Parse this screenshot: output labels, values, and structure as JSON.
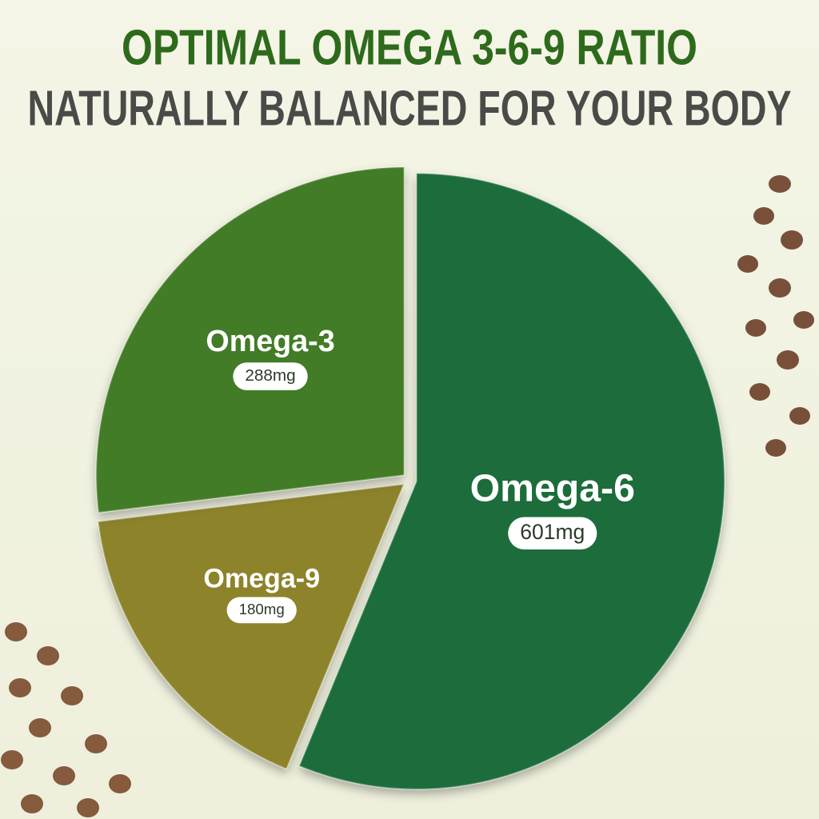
{
  "chart_data": {
    "type": "pie",
    "title": "OPTIMAL OMEGA 3-6-9 RATIO",
    "subtitle": "NATURALLY BALANCED FOR YOUR BODY",
    "categories": [
      "Omega-6",
      "Omega-9",
      "Omega-3"
    ],
    "values": [
      601,
      180,
      288
    ],
    "value_labels": [
      "601mg",
      "180mg",
      "288mg"
    ],
    "colors": [
      "#1d6d3b",
      "#8d8329",
      "#437c27"
    ]
  }
}
